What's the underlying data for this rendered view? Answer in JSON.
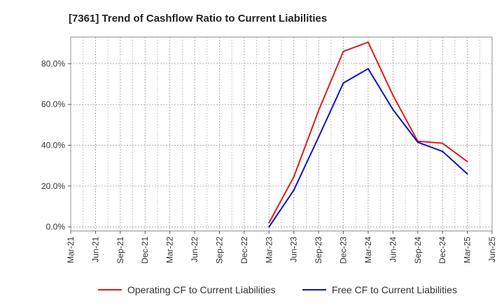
{
  "chart_data": {
    "type": "line",
    "title": "[7361]  Trend of Cashflow Ratio to Current Liabilities",
    "xlabel": "",
    "ylabel": "",
    "x_ticks": [
      "Mar-21",
      "Jun-21",
      "Sep-21",
      "Dec-21",
      "Mar-22",
      "Jun-22",
      "Sep-22",
      "Dec-22",
      "Mar-23",
      "Jun-23",
      "Sep-23",
      "Dec-23",
      "Mar-24",
      "Jun-24",
      "Sep-24",
      "Dec-24",
      "Mar-25",
      "Jun-25"
    ],
    "y_ticks": [
      "0.0%",
      "20.0%",
      "40.0%",
      "60.0%",
      "80.0%"
    ],
    "y_tick_values": [
      0,
      20,
      40,
      60,
      80
    ],
    "ylim": [
      -2,
      93
    ],
    "grid": true,
    "legend_position": "bottom",
    "x": [
      "Mar-23",
      "Jun-23",
      "Sep-23",
      "Dec-23",
      "Mar-24",
      "Jun-24",
      "Sep-24",
      "Dec-24",
      "Mar-25"
    ],
    "series": [
      {
        "name": "Operating CF to Current Liabilities",
        "color": "#e31a1c",
        "values": [
          2.0,
          24.5,
          57.0,
          86.0,
          90.5,
          64.5,
          42.0,
          41.0,
          32.0
        ]
      },
      {
        "name": "Free CF to Current Liabilities",
        "color": "#1010cc",
        "values": [
          0.0,
          18.0,
          44.0,
          70.5,
          77.5,
          57.5,
          41.5,
          37.0,
          26.0
        ]
      }
    ]
  }
}
